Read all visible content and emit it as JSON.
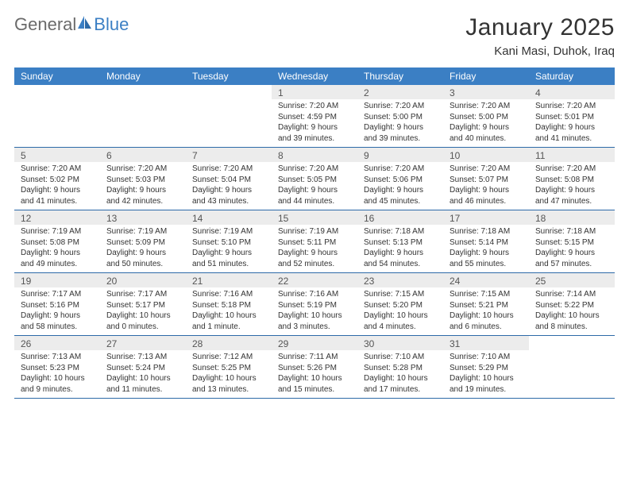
{
  "logo": {
    "word1": "General",
    "word2": "Blue"
  },
  "title": "January 2025",
  "location": "Kani Masi, Duhok, Iraq",
  "colors": {
    "header_bg": "#3b7fc4",
    "header_text": "#ffffff",
    "daynum_bg": "#ececec",
    "grid_border": "#2d6aa8",
    "body_text": "#333333",
    "page_bg": "#ffffff"
  },
  "weekdays": [
    "Sunday",
    "Monday",
    "Tuesday",
    "Wednesday",
    "Thursday",
    "Friday",
    "Saturday"
  ],
  "weeks": [
    [
      {
        "day": "",
        "sunrise": "",
        "sunset": "",
        "daylight": ""
      },
      {
        "day": "",
        "sunrise": "",
        "sunset": "",
        "daylight": ""
      },
      {
        "day": "",
        "sunrise": "",
        "sunset": "",
        "daylight": ""
      },
      {
        "day": "1",
        "sunrise": "Sunrise: 7:20 AM",
        "sunset": "Sunset: 4:59 PM",
        "daylight": "Daylight: 9 hours and 39 minutes."
      },
      {
        "day": "2",
        "sunrise": "Sunrise: 7:20 AM",
        "sunset": "Sunset: 5:00 PM",
        "daylight": "Daylight: 9 hours and 39 minutes."
      },
      {
        "day": "3",
        "sunrise": "Sunrise: 7:20 AM",
        "sunset": "Sunset: 5:00 PM",
        "daylight": "Daylight: 9 hours and 40 minutes."
      },
      {
        "day": "4",
        "sunrise": "Sunrise: 7:20 AM",
        "sunset": "Sunset: 5:01 PM",
        "daylight": "Daylight: 9 hours and 41 minutes."
      }
    ],
    [
      {
        "day": "5",
        "sunrise": "Sunrise: 7:20 AM",
        "sunset": "Sunset: 5:02 PM",
        "daylight": "Daylight: 9 hours and 41 minutes."
      },
      {
        "day": "6",
        "sunrise": "Sunrise: 7:20 AM",
        "sunset": "Sunset: 5:03 PM",
        "daylight": "Daylight: 9 hours and 42 minutes."
      },
      {
        "day": "7",
        "sunrise": "Sunrise: 7:20 AM",
        "sunset": "Sunset: 5:04 PM",
        "daylight": "Daylight: 9 hours and 43 minutes."
      },
      {
        "day": "8",
        "sunrise": "Sunrise: 7:20 AM",
        "sunset": "Sunset: 5:05 PM",
        "daylight": "Daylight: 9 hours and 44 minutes."
      },
      {
        "day": "9",
        "sunrise": "Sunrise: 7:20 AM",
        "sunset": "Sunset: 5:06 PM",
        "daylight": "Daylight: 9 hours and 45 minutes."
      },
      {
        "day": "10",
        "sunrise": "Sunrise: 7:20 AM",
        "sunset": "Sunset: 5:07 PM",
        "daylight": "Daylight: 9 hours and 46 minutes."
      },
      {
        "day": "11",
        "sunrise": "Sunrise: 7:20 AM",
        "sunset": "Sunset: 5:08 PM",
        "daylight": "Daylight: 9 hours and 47 minutes."
      }
    ],
    [
      {
        "day": "12",
        "sunrise": "Sunrise: 7:19 AM",
        "sunset": "Sunset: 5:08 PM",
        "daylight": "Daylight: 9 hours and 49 minutes."
      },
      {
        "day": "13",
        "sunrise": "Sunrise: 7:19 AM",
        "sunset": "Sunset: 5:09 PM",
        "daylight": "Daylight: 9 hours and 50 minutes."
      },
      {
        "day": "14",
        "sunrise": "Sunrise: 7:19 AM",
        "sunset": "Sunset: 5:10 PM",
        "daylight": "Daylight: 9 hours and 51 minutes."
      },
      {
        "day": "15",
        "sunrise": "Sunrise: 7:19 AM",
        "sunset": "Sunset: 5:11 PM",
        "daylight": "Daylight: 9 hours and 52 minutes."
      },
      {
        "day": "16",
        "sunrise": "Sunrise: 7:18 AM",
        "sunset": "Sunset: 5:13 PM",
        "daylight": "Daylight: 9 hours and 54 minutes."
      },
      {
        "day": "17",
        "sunrise": "Sunrise: 7:18 AM",
        "sunset": "Sunset: 5:14 PM",
        "daylight": "Daylight: 9 hours and 55 minutes."
      },
      {
        "day": "18",
        "sunrise": "Sunrise: 7:18 AM",
        "sunset": "Sunset: 5:15 PM",
        "daylight": "Daylight: 9 hours and 57 minutes."
      }
    ],
    [
      {
        "day": "19",
        "sunrise": "Sunrise: 7:17 AM",
        "sunset": "Sunset: 5:16 PM",
        "daylight": "Daylight: 9 hours and 58 minutes."
      },
      {
        "day": "20",
        "sunrise": "Sunrise: 7:17 AM",
        "sunset": "Sunset: 5:17 PM",
        "daylight": "Daylight: 10 hours and 0 minutes."
      },
      {
        "day": "21",
        "sunrise": "Sunrise: 7:16 AM",
        "sunset": "Sunset: 5:18 PM",
        "daylight": "Daylight: 10 hours and 1 minute."
      },
      {
        "day": "22",
        "sunrise": "Sunrise: 7:16 AM",
        "sunset": "Sunset: 5:19 PM",
        "daylight": "Daylight: 10 hours and 3 minutes."
      },
      {
        "day": "23",
        "sunrise": "Sunrise: 7:15 AM",
        "sunset": "Sunset: 5:20 PM",
        "daylight": "Daylight: 10 hours and 4 minutes."
      },
      {
        "day": "24",
        "sunrise": "Sunrise: 7:15 AM",
        "sunset": "Sunset: 5:21 PM",
        "daylight": "Daylight: 10 hours and 6 minutes."
      },
      {
        "day": "25",
        "sunrise": "Sunrise: 7:14 AM",
        "sunset": "Sunset: 5:22 PM",
        "daylight": "Daylight: 10 hours and 8 minutes."
      }
    ],
    [
      {
        "day": "26",
        "sunrise": "Sunrise: 7:13 AM",
        "sunset": "Sunset: 5:23 PM",
        "daylight": "Daylight: 10 hours and 9 minutes."
      },
      {
        "day": "27",
        "sunrise": "Sunrise: 7:13 AM",
        "sunset": "Sunset: 5:24 PM",
        "daylight": "Daylight: 10 hours and 11 minutes."
      },
      {
        "day": "28",
        "sunrise": "Sunrise: 7:12 AM",
        "sunset": "Sunset: 5:25 PM",
        "daylight": "Daylight: 10 hours and 13 minutes."
      },
      {
        "day": "29",
        "sunrise": "Sunrise: 7:11 AM",
        "sunset": "Sunset: 5:26 PM",
        "daylight": "Daylight: 10 hours and 15 minutes."
      },
      {
        "day": "30",
        "sunrise": "Sunrise: 7:10 AM",
        "sunset": "Sunset: 5:28 PM",
        "daylight": "Daylight: 10 hours and 17 minutes."
      },
      {
        "day": "31",
        "sunrise": "Sunrise: 7:10 AM",
        "sunset": "Sunset: 5:29 PM",
        "daylight": "Daylight: 10 hours and 19 minutes."
      },
      {
        "day": "",
        "sunrise": "",
        "sunset": "",
        "daylight": ""
      }
    ]
  ]
}
